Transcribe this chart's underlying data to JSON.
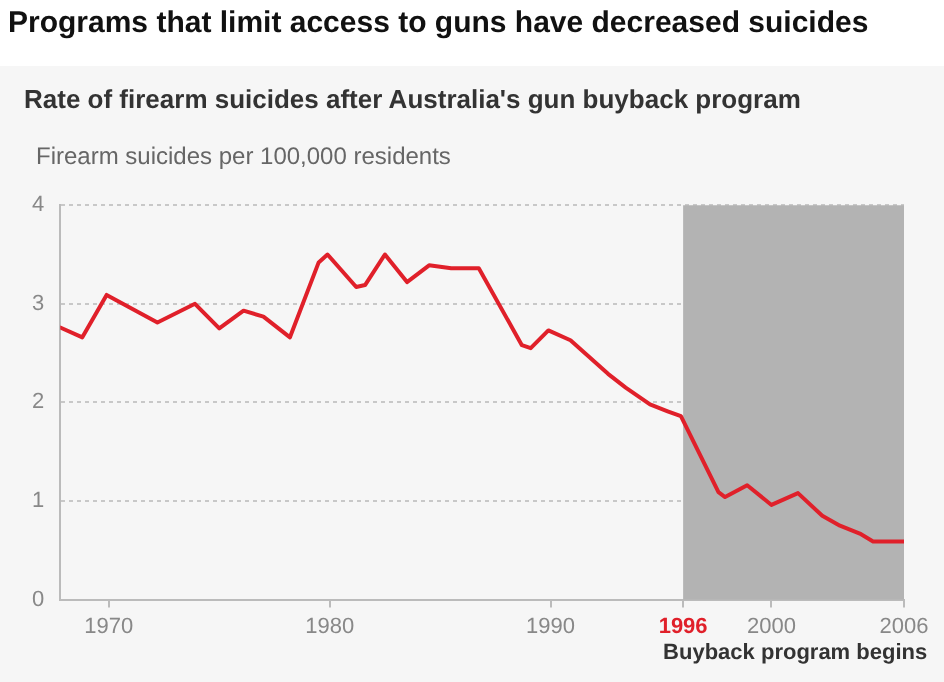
{
  "chart_data": {
    "type": "line",
    "title": "Programs that limit access to guns have decreased suicides",
    "subtitle": "Rate of firearm suicides after Australia's gun buyback program",
    "ylabel": "Firearm suicides per 100,000 residents",
    "xlim": [
      1967.8,
      2006
    ],
    "xticks": [
      1970,
      1980,
      1990,
      1996,
      2000,
      2006
    ],
    "ylim": [
      0,
      4
    ],
    "yticks": [
      0,
      1,
      2,
      3,
      4
    ],
    "grid": "y",
    "legend": false,
    "marker": "none",
    "line_style": "solid",
    "bands": [
      {
        "axis": "x",
        "from": 1996,
        "to": 2006,
        "label": "Buyback program begins",
        "color": "#b3b3b3"
      }
    ],
    "series": [
      {
        "color": "#e0202a",
        "x": [
          1967.8,
          1968.8,
          1969.9,
          1972.2,
          1973.9,
          1975.0,
          1976.1,
          1977.0,
          1978.2,
          1979.5,
          1979.9,
          1981.2,
          1981.6,
          1982.5,
          1983.5,
          1984.5,
          1985.5,
          1986.75,
          1988.7,
          1989.1,
          1989.9,
          1990.9,
          1992.6,
          1993.4,
          1994.5,
          1995.3,
          1995.9,
          1997.6,
          1997.9,
          1998.9,
          2000.0,
          2001.2,
          2002.3,
          2003.1,
          2004.0,
          2004.6,
          2006
        ],
        "values": [
          2.76,
          2.66,
          3.09,
          2.81,
          3.0,
          2.75,
          2.93,
          2.87,
          2.66,
          3.42,
          3.5,
          3.17,
          3.19,
          3.5,
          3.22,
          3.39,
          3.36,
          3.36,
          2.58,
          2.55,
          2.73,
          2.63,
          2.29,
          2.15,
          1.98,
          1.91,
          1.86,
          1.09,
          1.04,
          1.16,
          0.96,
          1.08,
          0.85,
          0.75,
          0.67,
          0.59,
          0.59
        ]
      }
    ]
  }
}
